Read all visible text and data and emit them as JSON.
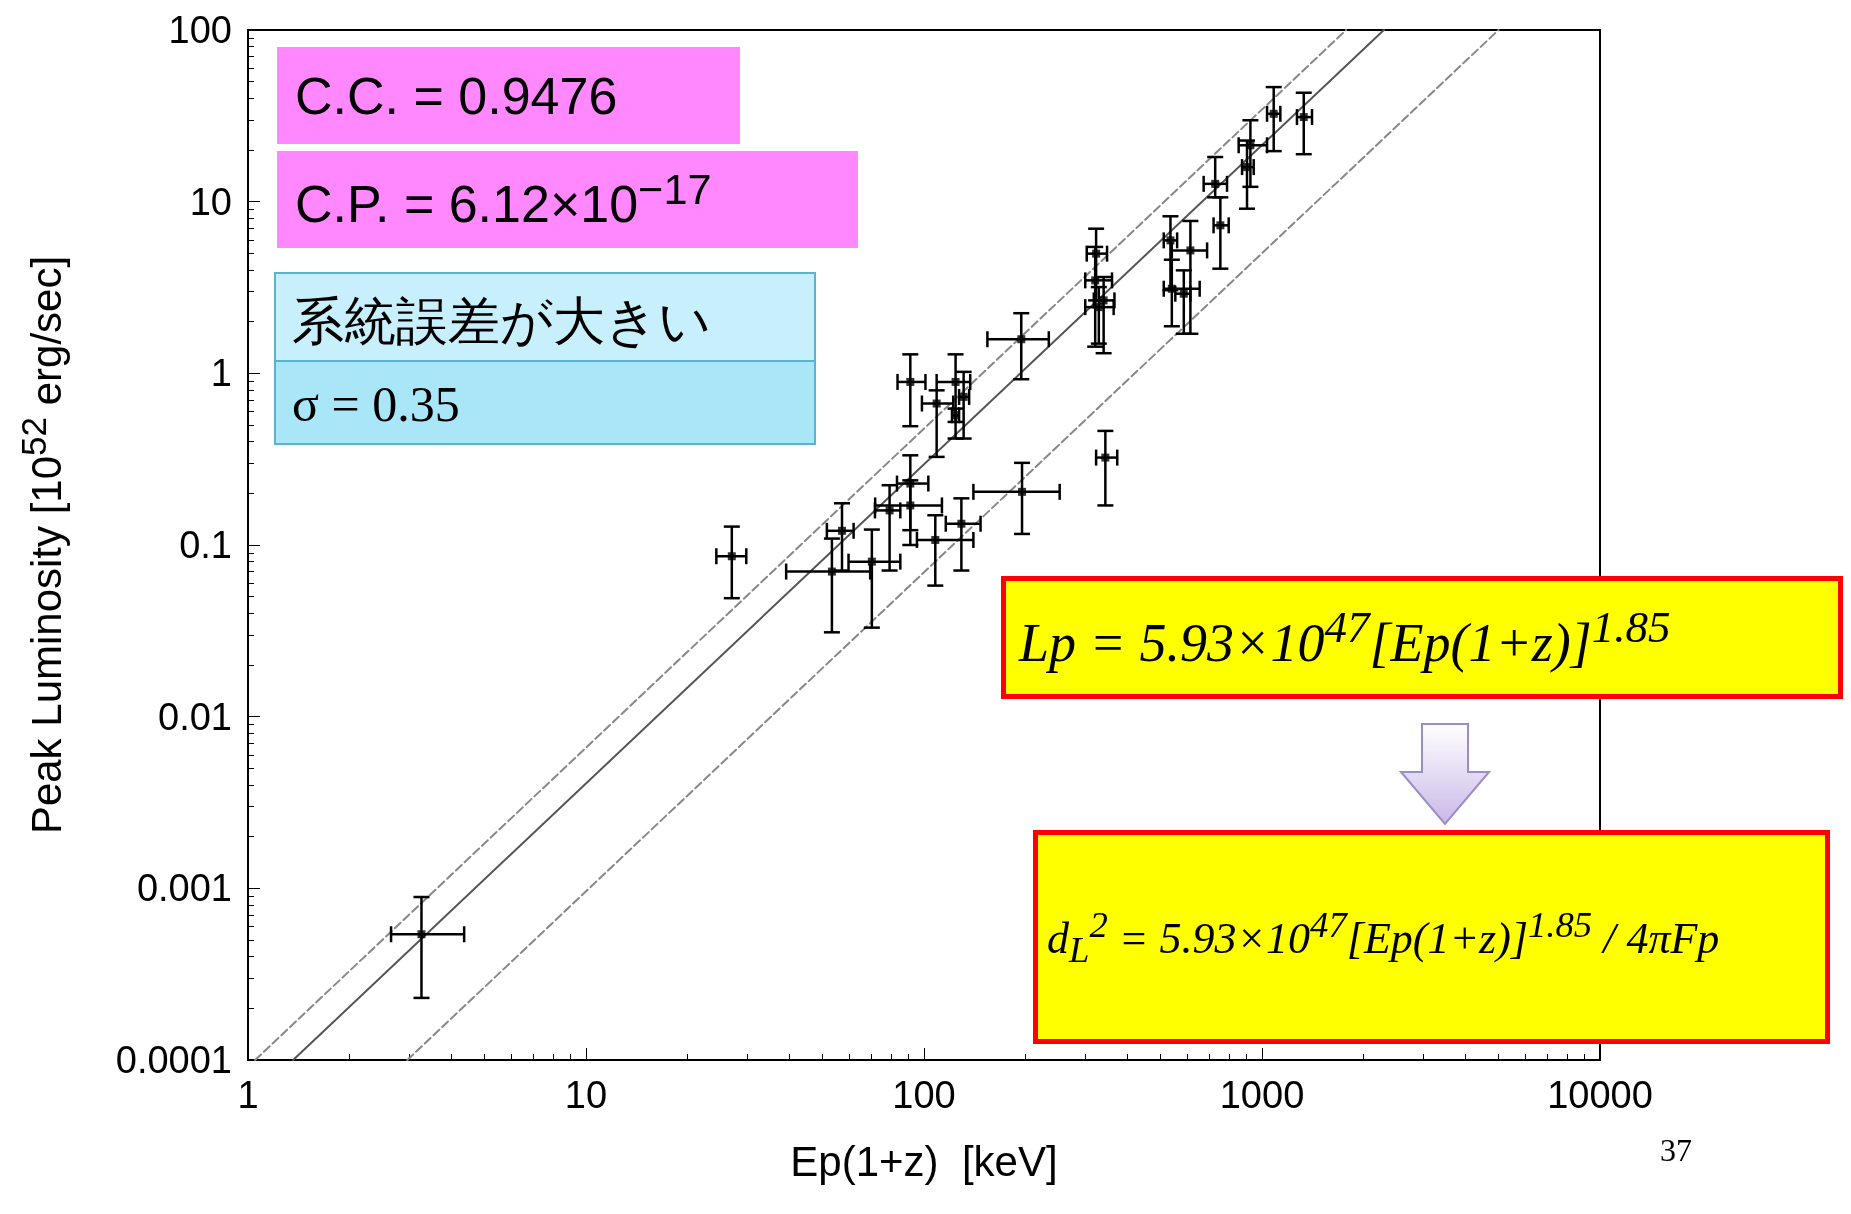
{
  "chart_data": {
    "type": "scatter",
    "xlabel": "Ep(1+z)  [keV]",
    "ylabel": "Peak Luminosity [10$^{52}$ erg/sec]",
    "log": "xy",
    "grid": false,
    "xlim": [
      1,
      10000
    ],
    "xticks": [
      1,
      10,
      100,
      1000,
      10000
    ],
    "ylim": [
      0.0001,
      100
    ],
    "yticks": [
      0.0001,
      0.001,
      0.01,
      0.1,
      1,
      10,
      100
    ],
    "annotations": [
      "C.C. = 0.9476",
      "C.P. = 6.12×10$^{−17}$",
      "系統誤差が大きい",
      "σ = 0.35",
      "Lp = 5.93×10$^{47}$[Ep(1+z)]$^{1.85}$",
      "d$_{L}$$^{2}$ = 5.93×10$^{47}$[Ep(1+z)]$^{1.85}$ / 4πFp",
      "37"
    ],
    "series": [
      {
        "marker": "square",
        "color": "#000000",
        "x": [
          3.26,
          27.0,
          53.4,
          57.2,
          70.1,
          79.1,
          91.1,
          91.1,
          108,
          129,
          195,
          344,
          91.1,
          109,
          124,
          131,
          124,
          194,
          323,
          321,
          340,
          329,
          536,
          614,
          541,
          587,
          727,
          753,
          924,
          903,
          1083,
          1329
        ],
        "values": [
          0.00054,
          0.086,
          0.07,
          0.121,
          0.08,
          0.159,
          0.228,
          0.17,
          0.107,
          0.133,
          0.204,
          0.323,
          0.891,
          0.667,
          0.891,
          0.729,
          0.57,
          1.58,
          4.98,
          3.48,
          2.66,
          2.43,
          5.95,
          5.2,
          3.11,
          2.91,
          12.7,
          7.28,
          21.3,
          15.9,
          32.5,
          31.1
        ],
        "xerrors": [
          [
            2.65,
            4.36
          ],
          [
            24.3,
            29.8
          ],
          [
            39.1,
            69.3
          ],
          [
            51.6,
            61.9
          ],
          [
            59.8,
            85.1
          ],
          [
            71.6,
            85.1
          ],
          [
            83.2,
            103
          ],
          [
            71.7,
            113
          ],
          [
            95.3,
            140
          ],
          [
            116,
            147
          ],
          [
            140,
            252
          ],
          [
            323,
            373
          ],
          [
            83.5,
            101
          ],
          [
            98.6,
            122
          ],
          [
            109,
            137
          ],
          [
            127,
            136
          ],
          [
            121,
            127
          ],
          [
            154,
            234
          ],
          [
            303,
            348
          ],
          [
            300,
            360
          ],
          [
            318,
            366
          ],
          [
            300,
            364
          ],
          [
            512,
            561
          ],
          [
            541,
            688
          ],
          [
            512,
            654
          ],
          [
            554,
            614
          ],
          [
            672,
            788
          ],
          [
            719,
            797
          ],
          [
            853,
            1035
          ],
          [
            873,
            945
          ],
          [
            1035,
            1133
          ],
          [
            1269,
            1406
          ]
        ],
        "errors": [
          [
            0.00023,
            0.00089
          ],
          [
            0.049,
            0.128
          ],
          [
            0.031,
            0.109
          ],
          [
            0.071,
            0.175
          ],
          [
            0.033,
            0.123
          ],
          [
            0.071,
            0.223
          ],
          [
            0.122,
            0.333
          ],
          [
            0.1,
            0.238
          ],
          [
            0.058,
            0.149
          ],
          [
            0.071,
            0.187
          ],
          [
            0.116,
            0.301
          ],
          [
            0.17,
            0.462
          ],
          [
            0.492,
            1.29
          ],
          [
            0.326,
            0.796
          ],
          [
            0.417,
            1.29
          ],
          [
            0.417,
            1.02
          ],
          [
            0.521,
            0.623
          ],
          [
            0.924,
            2.24
          ],
          [
            2.66,
            6.96
          ],
          [
            1.43,
            5.45
          ],
          [
            1.31,
            3.64
          ],
          [
            1.49,
            3.18
          ],
          [
            3.05,
            8.22
          ],
          [
            1.7,
            7.72
          ],
          [
            1.88,
            4.59
          ],
          [
            1.7,
            3.98
          ],
          [
            10.6,
            18.2
          ],
          [
            4.07,
            10.6
          ],
          [
            12.2,
            29.8
          ],
          [
            9.1,
            22.7
          ],
          [
            19.7,
            46.5
          ],
          [
            18.9,
            43.1
          ]
        ]
      },
      {
        "type": "line",
        "color": "#555555",
        "line_style": "solid",
        "x": [
          1.36,
          2294
        ],
        "values": [
          0.0001,
          100
        ]
      },
      {
        "type": "line",
        "color": "#888888",
        "line_style": "dashed",
        "x": [
          1.05,
          1774
        ],
        "values": [
          0.0001,
          100
        ]
      },
      {
        "type": "line",
        "color": "#888888",
        "line_style": "dashed",
        "x": [
          2.96,
          5010
        ],
        "values": [
          0.0001,
          100
        ]
      }
    ]
  }
}
